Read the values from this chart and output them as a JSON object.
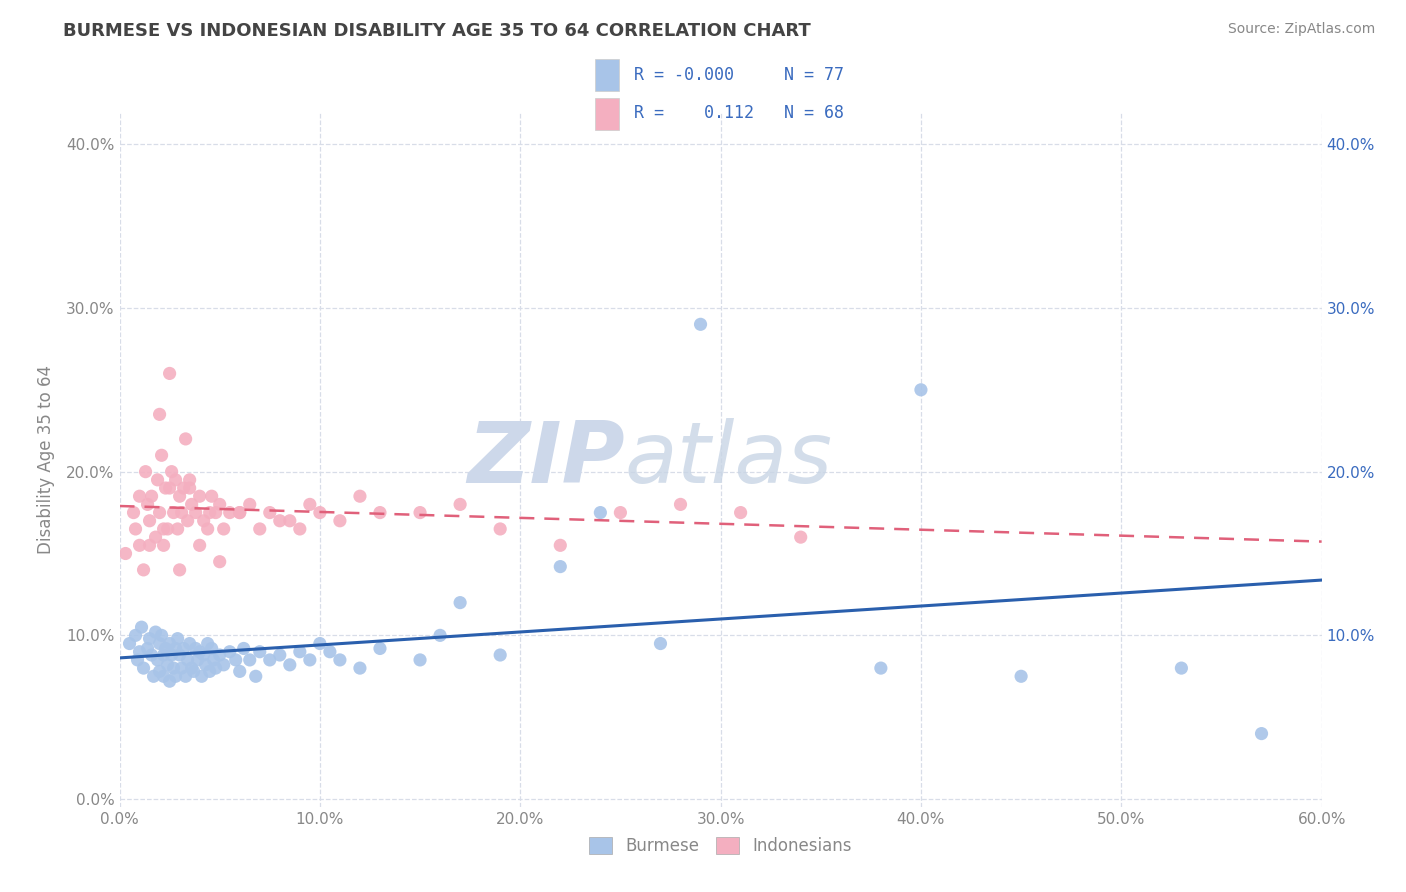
{
  "title": "BURMESE VS INDONESIAN DISABILITY AGE 35 TO 64 CORRELATION CHART",
  "source_text": "Source: ZipAtlas.com",
  "ylabel": "Disability Age 35 to 64",
  "xlim": [
    0.0,
    0.6
  ],
  "ylim": [
    -0.005,
    0.42
  ],
  "xticks": [
    0.0,
    0.1,
    0.2,
    0.3,
    0.4,
    0.5,
    0.6
  ],
  "yticks": [
    0.0,
    0.1,
    0.2,
    0.3,
    0.4
  ],
  "right_yticks": [
    0.1,
    0.2,
    0.3,
    0.4
  ],
  "legend_r1": "-0.000",
  "legend_n1": "77",
  "legend_r2": "0.112",
  "legend_n2": "68",
  "burmese_color": "#a8c4e8",
  "indonesian_color": "#f4afc0",
  "burmese_line_color": "#2a5fad",
  "indonesian_line_color": "#e0607a",
  "watermark_zip": "ZIP",
  "watermark_atlas": "atlas",
  "watermark_color": "#cdd8ea",
  "title_color": "#444444",
  "grid_color": "#d8dde8",
  "tick_color": "#888888",
  "right_tick_color": "#3a6bbf",
  "source_color": "#888888",
  "legend_text_color": "#3a6bbf",
  "legend_r_label_color": "#333333",
  "burmese_x": [
    0.005,
    0.008,
    0.009,
    0.01,
    0.011,
    0.012,
    0.014,
    0.015,
    0.016,
    0.017,
    0.018,
    0.019,
    0.02,
    0.02,
    0.021,
    0.022,
    0.022,
    0.023,
    0.024,
    0.025,
    0.025,
    0.026,
    0.027,
    0.028,
    0.028,
    0.029,
    0.03,
    0.031,
    0.032,
    0.033,
    0.034,
    0.035,
    0.036,
    0.037,
    0.038,
    0.039,
    0.04,
    0.041,
    0.042,
    0.043,
    0.044,
    0.045,
    0.046,
    0.047,
    0.048,
    0.05,
    0.052,
    0.055,
    0.058,
    0.06,
    0.062,
    0.065,
    0.068,
    0.07,
    0.075,
    0.08,
    0.085,
    0.09,
    0.095,
    0.1,
    0.105,
    0.11,
    0.12,
    0.13,
    0.15,
    0.17,
    0.19,
    0.22,
    0.27,
    0.29,
    0.38,
    0.4,
    0.45,
    0.53,
    0.57,
    0.16,
    0.24
  ],
  "burmese_y": [
    0.095,
    0.1,
    0.085,
    0.09,
    0.105,
    0.08,
    0.092,
    0.098,
    0.088,
    0.075,
    0.102,
    0.085,
    0.095,
    0.078,
    0.1,
    0.088,
    0.075,
    0.092,
    0.082,
    0.095,
    0.072,
    0.088,
    0.08,
    0.092,
    0.075,
    0.098,
    0.088,
    0.08,
    0.092,
    0.075,
    0.085,
    0.095,
    0.08,
    0.078,
    0.092,
    0.085,
    0.09,
    0.075,
    0.088,
    0.082,
    0.095,
    0.078,
    0.092,
    0.085,
    0.08,
    0.088,
    0.082,
    0.09,
    0.085,
    0.078,
    0.092,
    0.085,
    0.075,
    0.09,
    0.085,
    0.088,
    0.082,
    0.09,
    0.085,
    0.095,
    0.09,
    0.085,
    0.08,
    0.092,
    0.085,
    0.12,
    0.088,
    0.142,
    0.095,
    0.29,
    0.08,
    0.25,
    0.075,
    0.08,
    0.04,
    0.1,
    0.175
  ],
  "indonesian_x": [
    0.003,
    0.007,
    0.01,
    0.012,
    0.013,
    0.015,
    0.016,
    0.018,
    0.019,
    0.02,
    0.021,
    0.022,
    0.023,
    0.024,
    0.025,
    0.026,
    0.027,
    0.028,
    0.029,
    0.03,
    0.031,
    0.032,
    0.033,
    0.034,
    0.035,
    0.036,
    0.038,
    0.04,
    0.042,
    0.044,
    0.046,
    0.048,
    0.05,
    0.052,
    0.055,
    0.06,
    0.065,
    0.07,
    0.075,
    0.08,
    0.085,
    0.09,
    0.095,
    0.1,
    0.11,
    0.12,
    0.13,
    0.15,
    0.17,
    0.19,
    0.22,
    0.25,
    0.28,
    0.31,
    0.34,
    0.01,
    0.015,
    0.02,
    0.025,
    0.03,
    0.035,
    0.04,
    0.045,
    0.05,
    0.06,
    0.008,
    0.014,
    0.022
  ],
  "indonesian_y": [
    0.15,
    0.175,
    0.155,
    0.14,
    0.2,
    0.17,
    0.185,
    0.16,
    0.195,
    0.175,
    0.21,
    0.155,
    0.19,
    0.165,
    0.26,
    0.2,
    0.175,
    0.195,
    0.165,
    0.185,
    0.175,
    0.19,
    0.22,
    0.17,
    0.195,
    0.18,
    0.175,
    0.185,
    0.17,
    0.165,
    0.185,
    0.175,
    0.18,
    0.165,
    0.175,
    0.175,
    0.18,
    0.165,
    0.175,
    0.17,
    0.17,
    0.165,
    0.18,
    0.175,
    0.17,
    0.185,
    0.175,
    0.175,
    0.18,
    0.165,
    0.155,
    0.175,
    0.18,
    0.175,
    0.16,
    0.185,
    0.155,
    0.235,
    0.19,
    0.14,
    0.19,
    0.155,
    0.175,
    0.145,
    0.175,
    0.165,
    0.18,
    0.165
  ]
}
